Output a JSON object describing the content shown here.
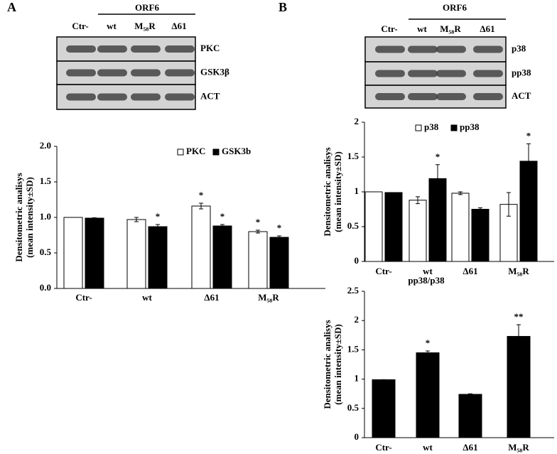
{
  "panel_labels": [
    "A",
    "B"
  ],
  "blots": [
    {
      "group_label": "ORF6",
      "lanes": [
        "Ctr-",
        "wt",
        "M₅₈R",
        "Δ61"
      ],
      "rows": [
        "PKC",
        "GSK3β",
        "ACT"
      ]
    },
    {
      "group_label": "ORF6",
      "lanes": [
        "Ctr-",
        "wt",
        "M₅₈R",
        "Δ61"
      ],
      "rows": [
        "p38",
        "pp38",
        "ACT"
      ]
    }
  ],
  "chart_data": [
    {
      "type": "bar",
      "ylabel": [
        "Densitometric analisys",
        "(mean intensity±SD)"
      ],
      "categories": [
        "Ctr-",
        "wt",
        "Δ61",
        "M₅₈R"
      ],
      "series": [
        {
          "name": "PKC",
          "color": "#ffffff",
          "values": [
            1.0,
            0.97,
            1.16,
            0.8
          ],
          "errors": [
            0.0,
            0.03,
            0.04,
            0.02
          ],
          "annotations": [
            null,
            null,
            "*",
            "*"
          ]
        },
        {
          "name": "GSK3b",
          "color": "#000000",
          "values": [
            0.99,
            0.87,
            0.88,
            0.72
          ],
          "errors": [
            0.005,
            0.03,
            0.02,
            0.02
          ],
          "annotations": [
            null,
            "*",
            "*",
            "*"
          ]
        }
      ],
      "ylim": [
        0,
        2
      ],
      "yticks": [
        {
          "value": 0,
          "label": "0.0"
        },
        {
          "value": 0.5,
          "label": "0.5"
        },
        {
          "value": 1,
          "label": "1.0"
        },
        {
          "value": 1.5,
          "label": "1.5"
        },
        {
          "value": 2,
          "label": "2.0"
        }
      ],
      "legend": "top"
    },
    {
      "type": "bar",
      "ylabel": [
        "Densitometric analisys",
        "(mean intensity±SD)"
      ],
      "categories": [
        "Ctr-",
        "wt",
        "Δ61",
        "M₅₈R"
      ],
      "series": [
        {
          "name": "p38",
          "color": "#ffffff",
          "values": [
            1.0,
            0.88,
            0.98,
            0.82
          ],
          "errors": [
            0.0,
            0.05,
            0.02,
            0.17
          ],
          "annotations": [
            null,
            null,
            null,
            null
          ]
        },
        {
          "name": "pp38",
          "color": "#000000",
          "values": [
            0.99,
            1.19,
            0.75,
            1.44
          ],
          "errors": [
            0.0,
            0.2,
            0.02,
            0.25
          ],
          "annotations": [
            null,
            "*",
            null,
            "*"
          ]
        }
      ],
      "ylim": [
        0,
        2
      ],
      "yticks": [
        0,
        0.5,
        1,
        1.5,
        2
      ],
      "legend": "top"
    },
    {
      "type": "bar",
      "title": "pp38/p38",
      "ylabel": [
        "Densitometric analisys",
        "(mean intensity±SD)"
      ],
      "categories": [
        "Ctr-",
        "wt",
        "Δ61",
        "M₅₈R"
      ],
      "series": [
        {
          "name": "pp38/p38",
          "color": "#000000",
          "values": [
            0.99,
            1.45,
            0.74,
            1.73
          ],
          "errors": [
            0.0,
            0.03,
            0.01,
            0.2
          ],
          "annotations": [
            null,
            "*",
            null,
            "**"
          ]
        }
      ],
      "ylim": [
        0,
        2.5
      ],
      "yticks": [
        0,
        0.5,
        1,
        1.5,
        2,
        2.5
      ]
    }
  ]
}
